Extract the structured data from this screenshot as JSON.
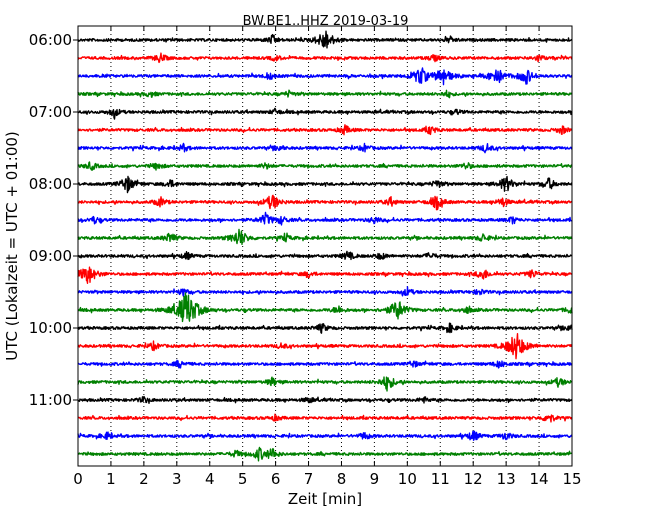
{
  "chart_data": {
    "type": "line",
    "title": "BW.BE1..HHZ 2019-03-19",
    "xlabel": "Zeit  [min]",
    "ylabel": "UTC (Lokalzeit = UTC + 01:00)",
    "xlim": [
      0,
      15
    ],
    "x_ticks": [
      "0",
      "1",
      "2",
      "3",
      "4",
      "5",
      "6",
      "7",
      "8",
      "9",
      "10",
      "11",
      "12",
      "13",
      "14",
      "15"
    ],
    "y_ticks": [
      "06:00",
      "07:00",
      "08:00",
      "09:00",
      "10:00",
      "11:00"
    ],
    "grid": "vertical dotted",
    "line_colors": [
      "#000000",
      "#ff0000",
      "#0000ff",
      "#008000"
    ],
    "traces": [
      {
        "start": "06:00",
        "color": "#000000",
        "events": [
          [
            5.9,
            0.35
          ],
          [
            7.5,
            0.9
          ],
          [
            11.3,
            0.25
          ]
        ]
      },
      {
        "start": "06:15",
        "color": "#ff0000",
        "events": [
          [
            2.5,
            0.4
          ],
          [
            6.0,
            0.25
          ],
          [
            10.8,
            0.3
          ],
          [
            14.0,
            0.3
          ]
        ]
      },
      {
        "start": "06:30",
        "color": "#0000ff",
        "events": [
          [
            5.8,
            0.3
          ],
          [
            10.4,
            0.8
          ],
          [
            11.1,
            0.8
          ],
          [
            12.7,
            0.8
          ],
          [
            13.6,
            0.7
          ]
        ]
      },
      {
        "start": "06:45",
        "color": "#008000",
        "events": [
          [
            2.2,
            0.25
          ],
          [
            6.4,
            0.25
          ],
          [
            11.2,
            0.25
          ]
        ]
      },
      {
        "start": "07:00",
        "color": "#000000",
        "events": [
          [
            1.1,
            0.4
          ],
          [
            6.0,
            0.25
          ],
          [
            11.5,
            0.2
          ]
        ]
      },
      {
        "start": "07:15",
        "color": "#ff0000",
        "events": [
          [
            8.1,
            0.4
          ],
          [
            10.7,
            0.35
          ],
          [
            14.7,
            0.35
          ]
        ]
      },
      {
        "start": "07:30",
        "color": "#0000ff",
        "events": [
          [
            3.2,
            0.3
          ],
          [
            6.1,
            0.25
          ],
          [
            8.7,
            0.3
          ],
          [
            12.4,
            0.4
          ]
        ]
      },
      {
        "start": "07:45",
        "color": "#008000",
        "events": [
          [
            0.4,
            0.35
          ],
          [
            2.4,
            0.3
          ],
          [
            5.7,
            0.25
          ],
          [
            11.8,
            0.3
          ]
        ]
      },
      {
        "start": "08:00",
        "color": "#000000",
        "events": [
          [
            1.5,
            0.7
          ],
          [
            2.8,
            0.35
          ],
          [
            10.9,
            0.35
          ],
          [
            13.0,
            0.7
          ],
          [
            14.3,
            0.5
          ]
        ]
      },
      {
        "start": "08:15",
        "color": "#ff0000",
        "events": [
          [
            2.5,
            0.4
          ],
          [
            5.9,
            0.7
          ],
          [
            9.5,
            0.35
          ],
          [
            10.9,
            0.6
          ],
          [
            12.9,
            0.4
          ]
        ]
      },
      {
        "start": "08:30",
        "color": "#0000ff",
        "events": [
          [
            0.5,
            0.3
          ],
          [
            5.7,
            0.55
          ],
          [
            6.2,
            0.35
          ],
          [
            9.0,
            0.3
          ],
          [
            13.2,
            0.3
          ]
        ]
      },
      {
        "start": "08:45",
        "color": "#008000",
        "events": [
          [
            2.8,
            0.45
          ],
          [
            4.9,
            0.8
          ],
          [
            6.3,
            0.3
          ],
          [
            12.3,
            0.35
          ]
        ]
      },
      {
        "start": "09:00",
        "color": "#000000",
        "events": [
          [
            3.3,
            0.3
          ],
          [
            8.2,
            0.4
          ],
          [
            9.2,
            0.3
          ],
          [
            10.7,
            0.3
          ]
        ]
      },
      {
        "start": "09:15",
        "color": "#ff0000",
        "events": [
          [
            0.3,
            0.9
          ],
          [
            7.0,
            0.3
          ],
          [
            12.3,
            0.5
          ],
          [
            13.8,
            0.35
          ]
        ]
      },
      {
        "start": "09:30",
        "color": "#0000ff",
        "events": [
          [
            3.2,
            0.3
          ],
          [
            10.0,
            0.35
          ],
          [
            12.2,
            0.25
          ]
        ]
      },
      {
        "start": "09:45",
        "color": "#008000",
        "events": [
          [
            3.3,
            1.6
          ],
          [
            7.9,
            0.35
          ],
          [
            9.7,
            0.9
          ],
          [
            11.8,
            0.3
          ],
          [
            15.0,
            0.4
          ]
        ]
      },
      {
        "start": "10:00",
        "color": "#000000",
        "events": [
          [
            7.4,
            0.4
          ],
          [
            11.3,
            0.35
          ],
          [
            14.9,
            0.3
          ]
        ]
      },
      {
        "start": "10:15",
        "color": "#ff0000",
        "events": [
          [
            2.3,
            0.35
          ],
          [
            6.2,
            0.25
          ],
          [
            13.3,
            1.2
          ]
        ]
      },
      {
        "start": "10:30",
        "color": "#0000ff",
        "events": [
          [
            3.1,
            0.3
          ],
          [
            10.2,
            0.25
          ],
          [
            12.8,
            0.35
          ]
        ]
      },
      {
        "start": "10:45",
        "color": "#008000",
        "events": [
          [
            5.9,
            0.35
          ],
          [
            9.4,
            0.7
          ],
          [
            14.6,
            0.4
          ]
        ]
      },
      {
        "start": "11:00",
        "color": "#000000",
        "events": [
          [
            2.0,
            0.25
          ],
          [
            7.0,
            0.25
          ],
          [
            10.5,
            0.25
          ]
        ]
      },
      {
        "start": "11:15",
        "color": "#ff0000",
        "events": [
          [
            6.0,
            0.25
          ],
          [
            14.3,
            0.45
          ]
        ]
      },
      {
        "start": "11:30",
        "color": "#0000ff",
        "events": [
          [
            0.9,
            0.3
          ],
          [
            8.7,
            0.3
          ],
          [
            12.0,
            0.45
          ],
          [
            13.0,
            0.35
          ]
        ]
      },
      {
        "start": "11:45",
        "color": "#008000",
        "events": [
          [
            4.8,
            0.3
          ],
          [
            5.5,
            0.55
          ],
          [
            5.9,
            0.45
          ]
        ]
      }
    ]
  }
}
